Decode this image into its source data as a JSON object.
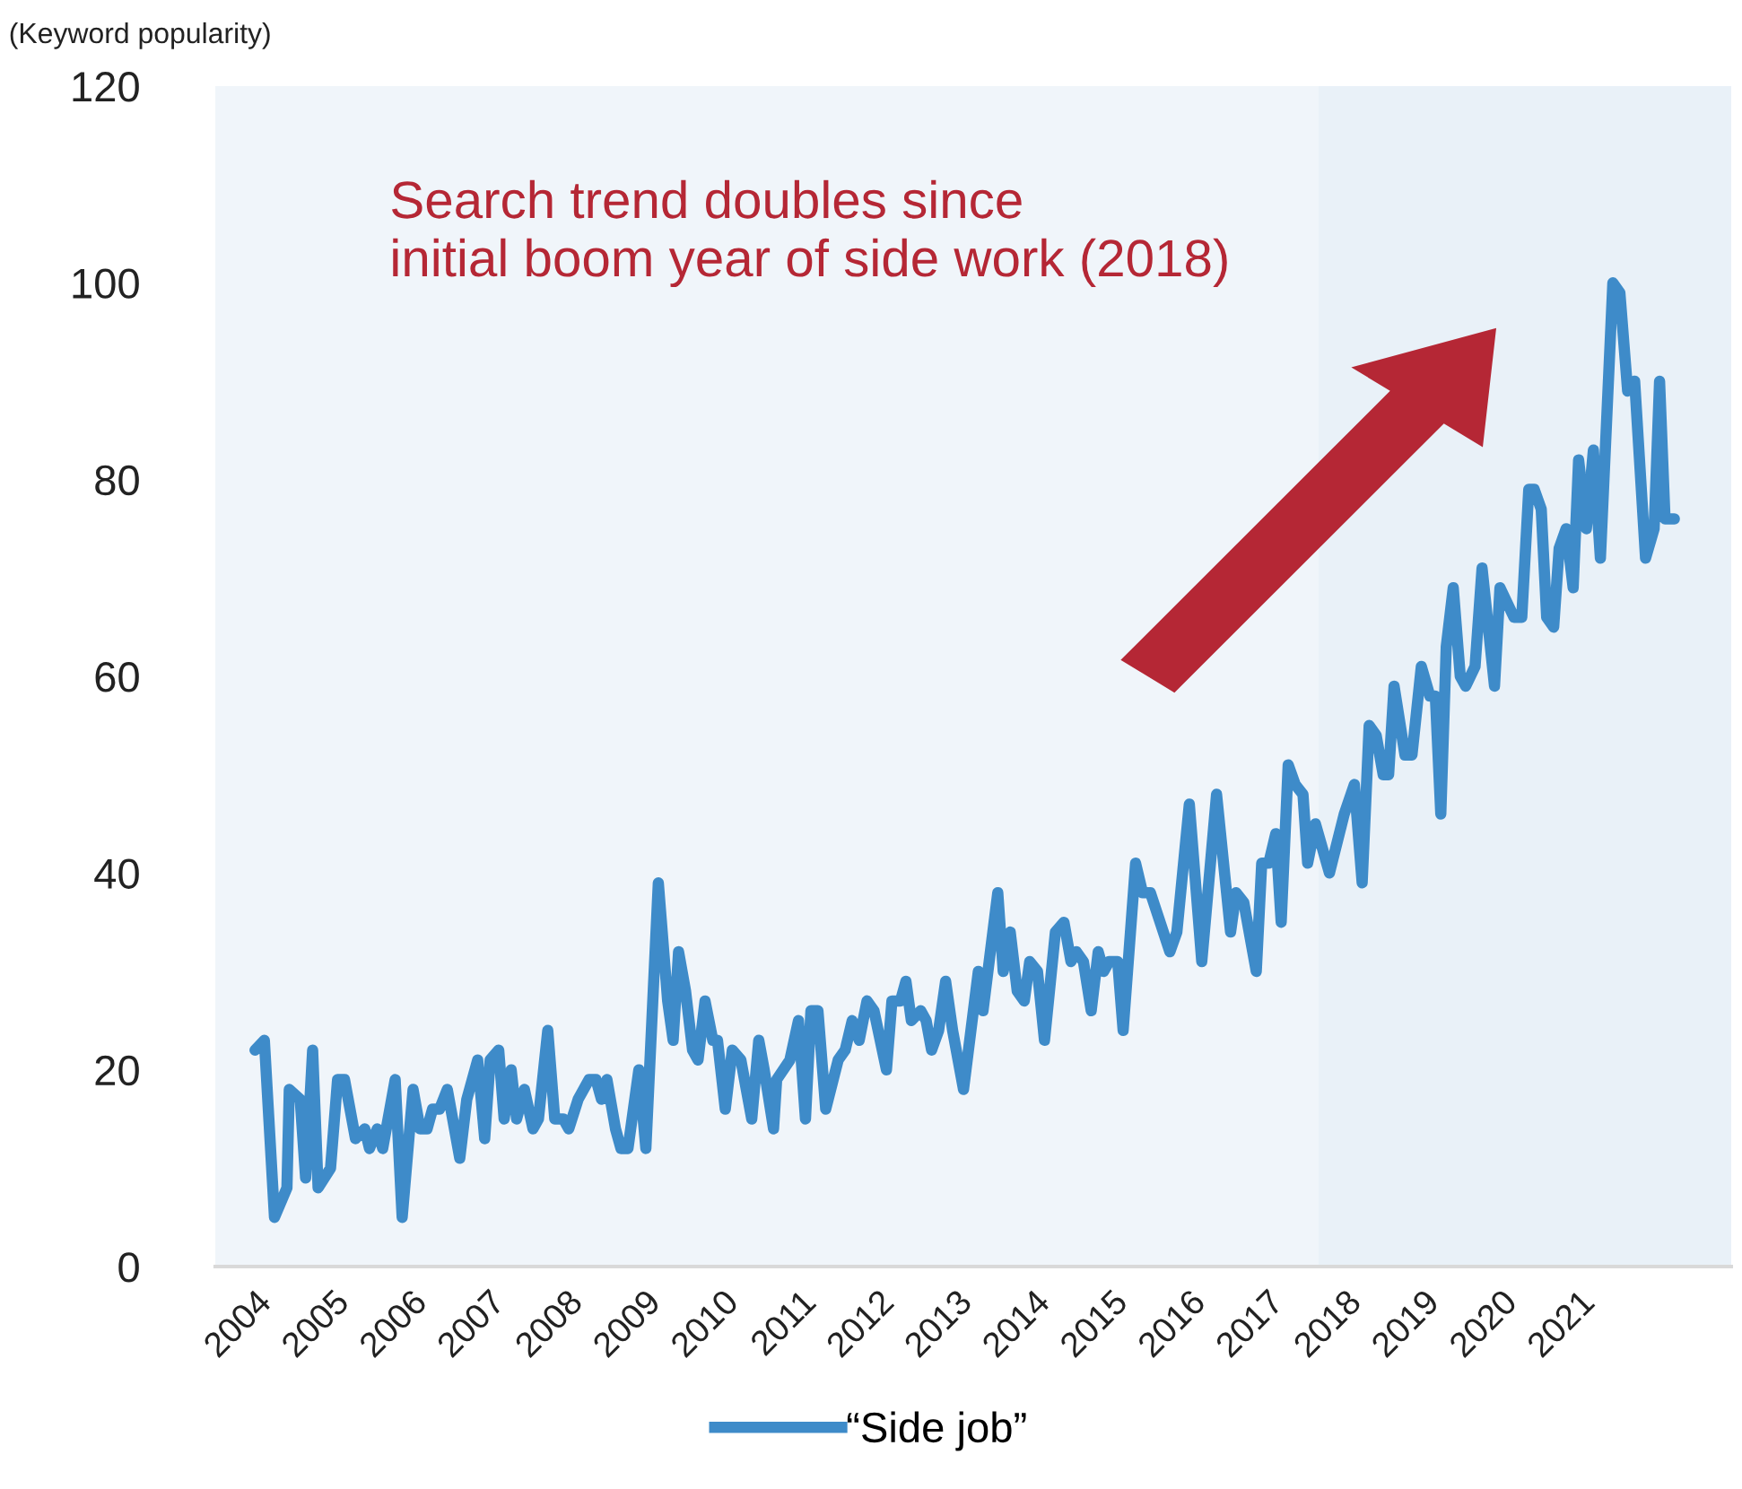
{
  "chart_data": {
    "type": "line",
    "ylabel": "(Keyword popularity)",
    "annotations": [
      "Search trend doubles since\ninitial boom year of side work (2018)"
    ],
    "series": [
      {
        "name": "“Side job”",
        "color": "#3e8bc9",
        "x": [
          2004.0,
          2004.12,
          2004.25,
          2004.41,
          2004.44,
          2004.58,
          2004.65,
          2004.74,
          2004.81,
          2004.97,
          2005.06,
          2005.15,
          2005.29,
          2005.41,
          2005.47,
          2005.57,
          2005.64,
          2005.8,
          2005.89,
          2006.03,
          2006.12,
          2006.21,
          2006.28,
          2006.37,
          2006.47,
          2006.63,
          2006.72,
          2006.86,
          2006.95,
          2007.02,
          2007.13,
          2007.2,
          2007.29,
          2007.36,
          2007.46,
          2007.57,
          2007.64,
          2007.76,
          2007.85,
          2007.96,
          2008.03,
          2008.15,
          2008.29,
          2008.38,
          2008.45,
          2008.52,
          2008.63,
          2008.7,
          2008.79,
          2008.93,
          2009.02,
          2009.18,
          2009.3,
          2009.37,
          2009.44,
          2009.53,
          2009.62,
          2009.69,
          2009.78,
          2009.88,
          2009.94,
          2010.04,
          2010.13,
          2010.24,
          2010.38,
          2010.47,
          2010.54,
          2010.66,
          2010.7,
          2010.87,
          2010.98,
          2011.07,
          2011.14,
          2011.23,
          2011.33,
          2011.49,
          2011.58,
          2011.67,
          2011.76,
          2011.86,
          2011.95,
          2012.11,
          2012.18,
          2012.29,
          2012.36,
          2012.43,
          2012.55,
          2012.62,
          2012.69,
          2012.78,
          2012.87,
          2012.96,
          2013.1,
          2013.29,
          2013.35,
          2013.54,
          2013.61,
          2013.7,
          2013.79,
          2013.88,
          2013.95,
          2014.05,
          2014.14,
          2014.28,
          2014.39,
          2014.48,
          2014.55,
          2014.64,
          2014.74,
          2014.83,
          2014.9,
          2014.97,
          2015.08,
          2015.15,
          2015.31,
          2015.4,
          2015.5,
          2015.75,
          2015.84,
          2016.0,
          2016.16,
          2016.35,
          2016.53,
          2016.6,
          2016.7,
          2016.86,
          2016.93,
          2017.02,
          2017.11,
          2017.18,
          2017.27,
          2017.36,
          2017.46,
          2017.52,
          2017.62,
          2017.8,
          2017.99,
          2018.12,
          2018.22,
          2018.31,
          2018.4,
          2018.49,
          2018.56,
          2018.63,
          2018.77,
          2018.86,
          2018.98,
          2019.09,
          2019.16,
          2019.23,
          2019.3,
          2019.39,
          2019.48,
          2019.55,
          2019.67,
          2019.76,
          2019.92,
          2019.99,
          2020.17,
          2020.27,
          2020.36,
          2020.43,
          2020.52,
          2020.59,
          2020.68,
          2020.75,
          2020.84,
          2020.93,
          2021.0,
          2021.1,
          2021.19,
          2021.28,
          2021.44,
          2021.53,
          2021.63,
          2021.72,
          2021.86,
          2021.97,
          2022.04,
          2022.11,
          2022.23
        ],
        "values": [
          22,
          23,
          5,
          8,
          18,
          17,
          9,
          22,
          8,
          10,
          19,
          19,
          13,
          14,
          12,
          14,
          12,
          19,
          5,
          18,
          14,
          14,
          16,
          16,
          18,
          11,
          17,
          21,
          13,
          21,
          22,
          15,
          20,
          15,
          18,
          14,
          15,
          24,
          15,
          15,
          14,
          17,
          19,
          19,
          17,
          19,
          14,
          12,
          12,
          20,
          12,
          39,
          27,
          23,
          32,
          28,
          22,
          21,
          27,
          23,
          23,
          16,
          22,
          21,
          15,
          23,
          20,
          14,
          19,
          21,
          25,
          15,
          26,
          26,
          16,
          21,
          22,
          25,
          23,
          27,
          26,
          20,
          27,
          27,
          29,
          25,
          26,
          25,
          22,
          24,
          29,
          24,
          18,
          30,
          26,
          38,
          30,
          34,
          28,
          27,
          31,
          30,
          23,
          34,
          35,
          31,
          32,
          31,
          26,
          32,
          30,
          31,
          31,
          24,
          41,
          38,
          38,
          32,
          34,
          47,
          31,
          48,
          34,
          38,
          37,
          30,
          41,
          41,
          44,
          35,
          51,
          49,
          48,
          41,
          45,
          40,
          46,
          49,
          39,
          55,
          54,
          50,
          50,
          59,
          52,
          52,
          61,
          58,
          58,
          46,
          63,
          69,
          60,
          59,
          61,
          71,
          59,
          69,
          66,
          66,
          79,
          79,
          77,
          66,
          65,
          73,
          75,
          69,
          82,
          75,
          83,
          72,
          100,
          99,
          89,
          90,
          72,
          75,
          90,
          76,
          76
        ]
      }
    ],
    "xlim": [
      2003.49,
      2022.96
    ],
    "xticks": [
      2004,
      2005,
      2006,
      2007,
      2008,
      2009,
      2010,
      2011,
      2012,
      2013,
      2014,
      2015,
      2016,
      2017,
      2018,
      2019,
      2020,
      2021
    ],
    "ylim": [
      0,
      120
    ],
    "yticks": [
      0,
      20,
      40,
      60,
      80,
      100,
      120
    ],
    "bands": [
      {
        "axis": "x",
        "from": 2003.49,
        "to": 2017.66,
        "color": "#f0f5fa"
      },
      {
        "axis": "x",
        "from": 2017.66,
        "to": 2022.96,
        "color": "#e9f1f8"
      }
    ],
    "grid": false,
    "legend": "bottom",
    "marker": "none",
    "line_style": "solid"
  }
}
